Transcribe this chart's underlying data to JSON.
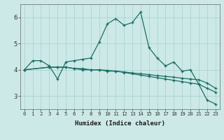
{
  "xlabel": "Humidex (Indice chaleur)",
  "xlim": [
    -0.5,
    23.5
  ],
  "ylim": [
    2.5,
    6.5
  ],
  "yticks": [
    3,
    4,
    5,
    6
  ],
  "xticks": [
    0,
    1,
    2,
    3,
    4,
    5,
    6,
    7,
    8,
    9,
    10,
    11,
    12,
    13,
    14,
    15,
    16,
    17,
    18,
    19,
    20,
    21,
    22,
    23
  ],
  "background_color": "#cce9e7",
  "grid_color": "#aad4d2",
  "line_color": "#1a6e64",
  "line1_x": [
    0,
    1,
    2,
    3,
    4,
    5,
    6,
    7,
    8,
    9,
    10,
    11,
    12,
    13,
    14,
    15,
    16,
    17,
    18,
    19,
    20,
    21,
    22,
    23
  ],
  "line1_y": [
    4.0,
    4.35,
    4.35,
    4.15,
    3.65,
    4.3,
    4.35,
    4.4,
    4.45,
    5.05,
    5.75,
    5.95,
    5.7,
    5.8,
    6.2,
    4.85,
    4.45,
    4.15,
    4.3,
    3.95,
    4.0,
    3.45,
    2.85,
    2.7
  ],
  "line2_x": [
    0,
    3,
    4,
    5,
    6,
    7,
    8,
    9,
    10,
    11,
    12,
    13,
    14,
    15,
    16,
    17,
    18,
    19,
    20,
    21,
    22,
    23
  ],
  "line2_y": [
    4.0,
    4.1,
    4.1,
    4.1,
    4.05,
    4.05,
    4.0,
    4.0,
    3.95,
    3.95,
    3.9,
    3.85,
    3.8,
    3.75,
    3.7,
    3.65,
    3.6,
    3.55,
    3.5,
    3.45,
    3.3,
    3.15
  ],
  "line3_x": [
    0,
    3,
    4,
    5,
    6,
    7,
    8,
    9,
    10,
    11,
    12,
    13,
    14,
    15,
    16,
    17,
    18,
    19,
    20,
    21,
    22,
    23
  ],
  "line3_y": [
    4.0,
    4.1,
    4.1,
    4.1,
    4.05,
    4.0,
    4.0,
    4.0,
    3.98,
    3.95,
    3.92,
    3.88,
    3.85,
    3.82,
    3.78,
    3.75,
    3.72,
    3.68,
    3.65,
    3.62,
    3.5,
    3.3
  ]
}
